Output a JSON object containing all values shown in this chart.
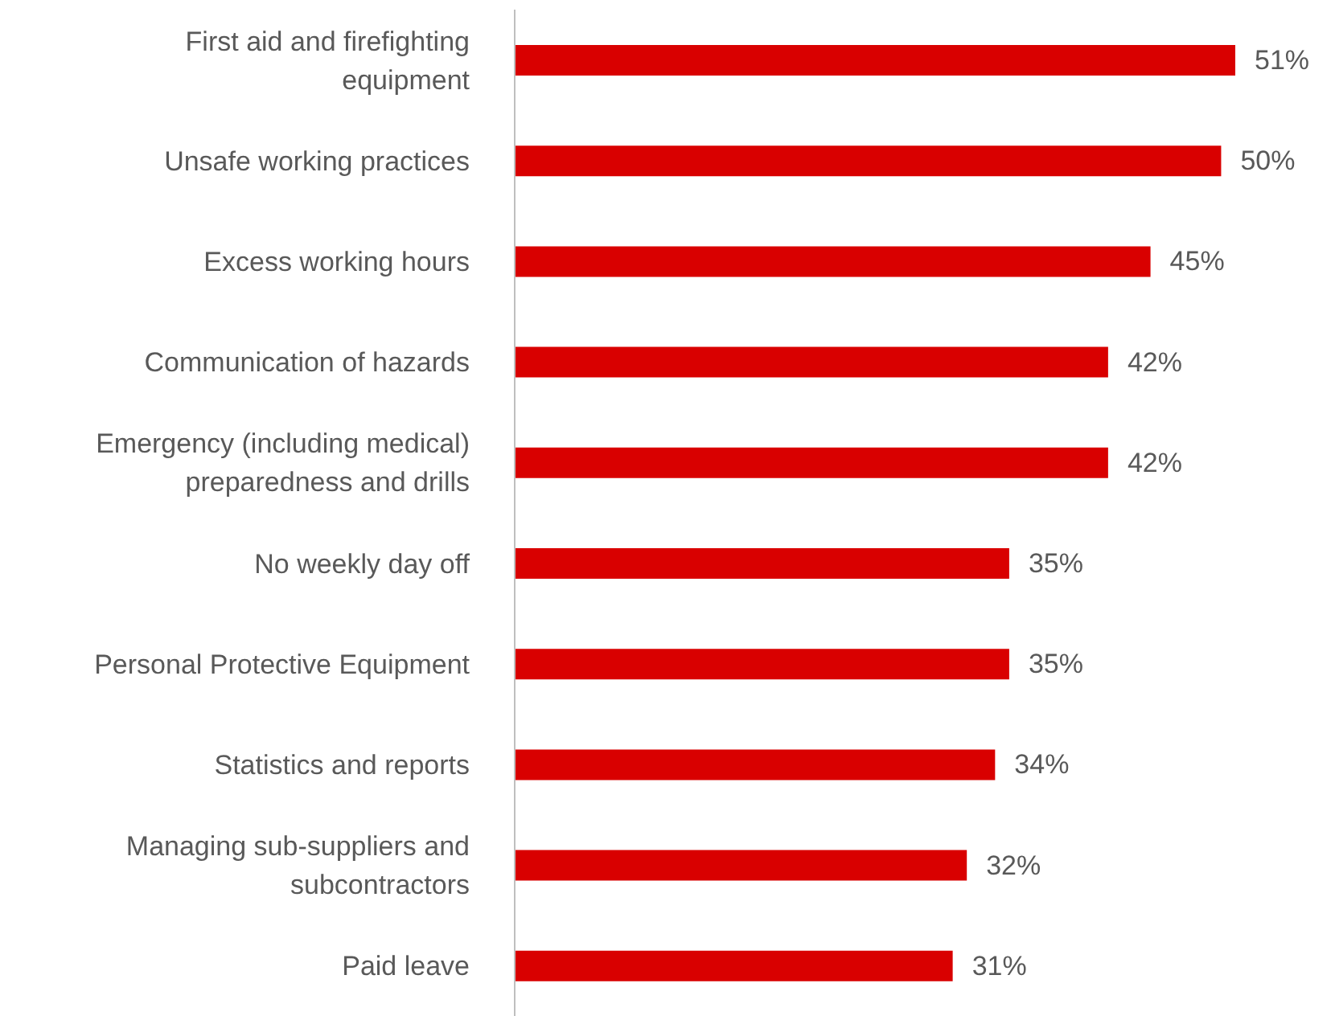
{
  "chart_data": {
    "type": "bar",
    "orientation": "horizontal",
    "categories": [
      "First aid and firefighting equipment",
      "Unsafe working practices",
      "Excess working hours",
      "Communication of hazards",
      "Emergency (including medical) preparedness and drills",
      "No weekly day off",
      "Personal Protective Equipment",
      "Statistics and reports",
      "Managing sub-suppliers and subcontractors",
      "Paid leave"
    ],
    "values": [
      51,
      50,
      45,
      42,
      42,
      35,
      35,
      34,
      32,
      31
    ],
    "value_labels": [
      "51%",
      "50%",
      "45%",
      "42%",
      "42%",
      "35%",
      "35%",
      "34%",
      "32%",
      "31%"
    ],
    "color": "#d90000"
  }
}
